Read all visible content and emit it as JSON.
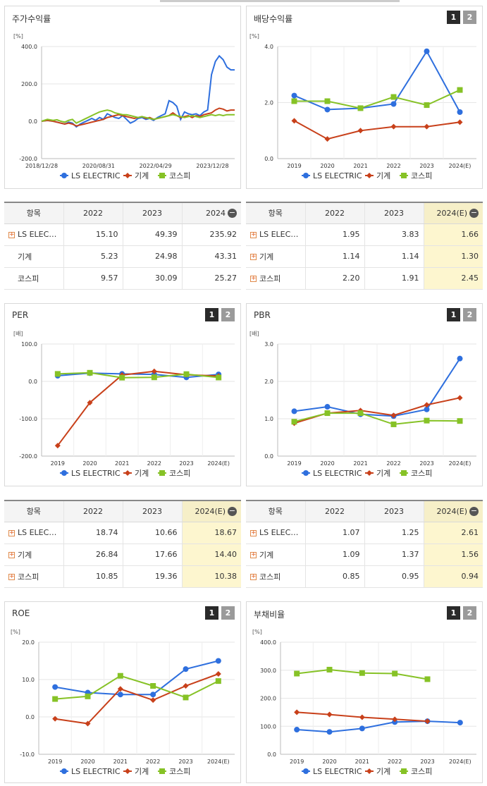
{
  "colors": {
    "ls": "#2e6fde",
    "machine": "#c8401a",
    "kospi": "#86c226"
  },
  "buttons": {
    "one": "1",
    "two": "2"
  },
  "legend": {
    "ls": "LS ELECTRIC",
    "machine": "기계",
    "kospi": "코스피"
  },
  "panels": {
    "stock": {
      "title": "주가수익률"
    },
    "dividend": {
      "title": "배당수익률"
    },
    "per": {
      "title": "PER"
    },
    "pbr": {
      "title": "PBR"
    },
    "roe": {
      "title": "ROE"
    },
    "debt": {
      "title": "부채비율"
    }
  },
  "tables": {
    "stock": {
      "headers": [
        "항목",
        "2022",
        "2023",
        "2024"
      ],
      "rows": [
        {
          "name": "LS ELEC…",
          "v": [
            "15.10",
            "49.39",
            "235.92"
          ]
        },
        {
          "name": "기계",
          "v": [
            "5.23",
            "24.98",
            "43.31"
          ]
        },
        {
          "name": "코스피",
          "v": [
            "9.57",
            "30.09",
            "25.27"
          ]
        }
      ]
    },
    "dividend": {
      "headers": [
        "항목",
        "2022",
        "2023",
        "2024(E)"
      ],
      "rows": [
        {
          "name": "LS ELEC…",
          "v": [
            "1.95",
            "3.83",
            "1.66"
          ]
        },
        {
          "name": "기계",
          "v": [
            "1.14",
            "1.14",
            "1.30"
          ]
        },
        {
          "name": "코스피",
          "v": [
            "2.20",
            "1.91",
            "2.45"
          ]
        }
      ]
    },
    "per": {
      "headers": [
        "항목",
        "2022",
        "2023",
        "2024(E)"
      ],
      "rows": [
        {
          "name": "LS ELEC…",
          "v": [
            "18.74",
            "10.66",
            "18.67"
          ]
        },
        {
          "name": "기계",
          "v": [
            "26.84",
            "17.66",
            "14.40"
          ]
        },
        {
          "name": "코스피",
          "v": [
            "10.85",
            "19.36",
            "10.38"
          ]
        }
      ]
    },
    "pbr": {
      "headers": [
        "항목",
        "2022",
        "2023",
        "2024(E)"
      ],
      "rows": [
        {
          "name": "LS ELEC…",
          "v": [
            "1.07",
            "1.25",
            "2.61"
          ]
        },
        {
          "name": "기계",
          "v": [
            "1.09",
            "1.37",
            "1.56"
          ]
        },
        {
          "name": "코스피",
          "v": [
            "0.85",
            "0.95",
            "0.94"
          ]
        }
      ]
    }
  },
  "chart_data": [
    {
      "id": "stock",
      "type": "line",
      "title": "주가수익률",
      "unit": "[%]",
      "ylim": [
        -200,
        400
      ],
      "yticks": [
        "400.0",
        "200.0",
        "0.0",
        "-200.0"
      ],
      "xticks": [
        "2018/12/28",
        "2020/08/31",
        "2022/04/29",
        "2023/12/28"
      ],
      "x": [
        0,
        3,
        6,
        8,
        10,
        12,
        14,
        16,
        18,
        20,
        22,
        24,
        26,
        28,
        30,
        32,
        34,
        36,
        38,
        40,
        42,
        44,
        46,
        48,
        50,
        52,
        54,
        56,
        58,
        60,
        62,
        64,
        66,
        68,
        70,
        72,
        74,
        76,
        78,
        80,
        82,
        84,
        86,
        88,
        90,
        92,
        94,
        96,
        98,
        100
      ],
      "series": [
        {
          "name": "LS ELECTRIC",
          "values": [
            0,
            5,
            0,
            -5,
            -10,
            -15,
            -5,
            -10,
            -30,
            -15,
            -5,
            5,
            15,
            5,
            20,
            10,
            40,
            30,
            20,
            15,
            30,
            10,
            -10,
            0,
            15,
            20,
            10,
            15,
            5,
            20,
            30,
            40,
            110,
            100,
            80,
            10,
            50,
            40,
            35,
            40,
            30,
            50,
            60,
            250,
            320,
            350,
            330,
            290,
            275,
            275
          ]
        },
        {
          "name": "기계",
          "values": [
            0,
            5,
            0,
            -5,
            -10,
            -15,
            -10,
            -15,
            -25,
            -20,
            -15,
            -10,
            -5,
            0,
            5,
            10,
            20,
            25,
            30,
            35,
            30,
            25,
            20,
            15,
            20,
            25,
            15,
            20,
            10,
            15,
            20,
            25,
            30,
            45,
            30,
            20,
            25,
            30,
            20,
            30,
            25,
            35,
            40,
            45,
            60,
            70,
            65,
            55,
            60,
            60
          ]
        },
        {
          "name": "코스피",
          "values": [
            0,
            10,
            5,
            8,
            0,
            -5,
            5,
            10,
            -10,
            0,
            10,
            20,
            30,
            40,
            50,
            55,
            60,
            55,
            45,
            40,
            35,
            35,
            30,
            25,
            20,
            25,
            20,
            15,
            10,
            15,
            20,
            25,
            30,
            35,
            30,
            25,
            20,
            25,
            30,
            25,
            20,
            25,
            30,
            35,
            30,
            35,
            30,
            35,
            35,
            35
          ]
        }
      ]
    },
    {
      "id": "dividend",
      "type": "line",
      "title": "배당수익률",
      "unit": "[%]",
      "ylim": [
        0,
        4
      ],
      "yticks": [
        "4.0",
        "2.0",
        "0.0"
      ],
      "categories": [
        "2019",
        "2020",
        "2021",
        "2022",
        "2023",
        "2024(E)"
      ],
      "series": [
        {
          "name": "LS ELECTRIC",
          "values": [
            2.25,
            1.75,
            1.8,
            1.95,
            3.83,
            1.66
          ]
        },
        {
          "name": "기계",
          "values": [
            1.35,
            0.7,
            1.0,
            1.14,
            1.14,
            1.3
          ]
        },
        {
          "name": "코스피",
          "values": [
            2.05,
            2.05,
            1.8,
            2.2,
            1.91,
            2.45
          ]
        }
      ]
    },
    {
      "id": "per",
      "type": "line",
      "title": "PER",
      "unit": "[배]",
      "ylim": [
        -200,
        100
      ],
      "yticks": [
        "100.0",
        "0.0",
        "-100.0",
        "-200.0"
      ],
      "categories": [
        "2019",
        "2020",
        "2021",
        "2022",
        "2023",
        "2024(E)"
      ],
      "series": [
        {
          "name": "LS ELECTRIC",
          "values": [
            15,
            22,
            20,
            18.74,
            10.66,
            18.67
          ]
        },
        {
          "name": "기계",
          "values": [
            -172,
            -57,
            17,
            26.84,
            17.66,
            14.4
          ]
        },
        {
          "name": "코스피",
          "values": [
            20,
            23,
            10,
            10.85,
            19.36,
            10.38
          ]
        }
      ]
    },
    {
      "id": "pbr",
      "type": "line",
      "title": "PBR",
      "unit": "[배]",
      "ylim": [
        0,
        3
      ],
      "yticks": [
        "3.0",
        "2.0",
        "1.0",
        "0.0"
      ],
      "categories": [
        "2019",
        "2020",
        "2021",
        "2022",
        "2023",
        "2024(E)"
      ],
      "series": [
        {
          "name": "LS ELECTRIC",
          "values": [
            1.2,
            1.32,
            1.12,
            1.07,
            1.25,
            2.61
          ]
        },
        {
          "name": "기계",
          "values": [
            0.88,
            1.15,
            1.22,
            1.09,
            1.37,
            1.56
          ]
        },
        {
          "name": "코스피",
          "values": [
            0.92,
            1.15,
            1.15,
            0.85,
            0.95,
            0.94
          ]
        }
      ]
    },
    {
      "id": "roe",
      "type": "line",
      "title": "ROE",
      "unit": "[%]",
      "ylim": [
        -10,
        20
      ],
      "yticks": [
        "20.0",
        "10.0",
        "0.0",
        "-10.0"
      ],
      "categories": [
        "2019",
        "2020",
        "2021",
        "2022",
        "2023",
        "2024(E)"
      ],
      "series": [
        {
          "name": "LS ELECTRIC",
          "values": [
            8,
            6.5,
            6,
            6,
            12.8,
            15
          ]
        },
        {
          "name": "기계",
          "values": [
            -0.5,
            -1.8,
            7.5,
            4.5,
            8.3,
            11.5
          ]
        },
        {
          "name": "코스피",
          "values": [
            4.8,
            5.5,
            11,
            8.3,
            5.2,
            9.6
          ]
        }
      ]
    },
    {
      "id": "debt",
      "type": "line",
      "title": "부채비율",
      "unit": "[%]",
      "ylim": [
        0,
        400
      ],
      "yticks": [
        "400.0",
        "300.0",
        "200.0",
        "100.0",
        "0.0"
      ],
      "categories": [
        "2019",
        "2020",
        "2021",
        "2022",
        "2023",
        "2024(E)"
      ],
      "series": [
        {
          "name": "LS ELECTRIC",
          "values": [
            88,
            80,
            92,
            115,
            118,
            113
          ]
        },
        {
          "name": "기계",
          "values": [
            150,
            142,
            132,
            125,
            118,
            null
          ]
        },
        {
          "name": "코스피",
          "values": [
            288,
            302,
            290,
            288,
            268,
            null
          ]
        }
      ]
    }
  ]
}
